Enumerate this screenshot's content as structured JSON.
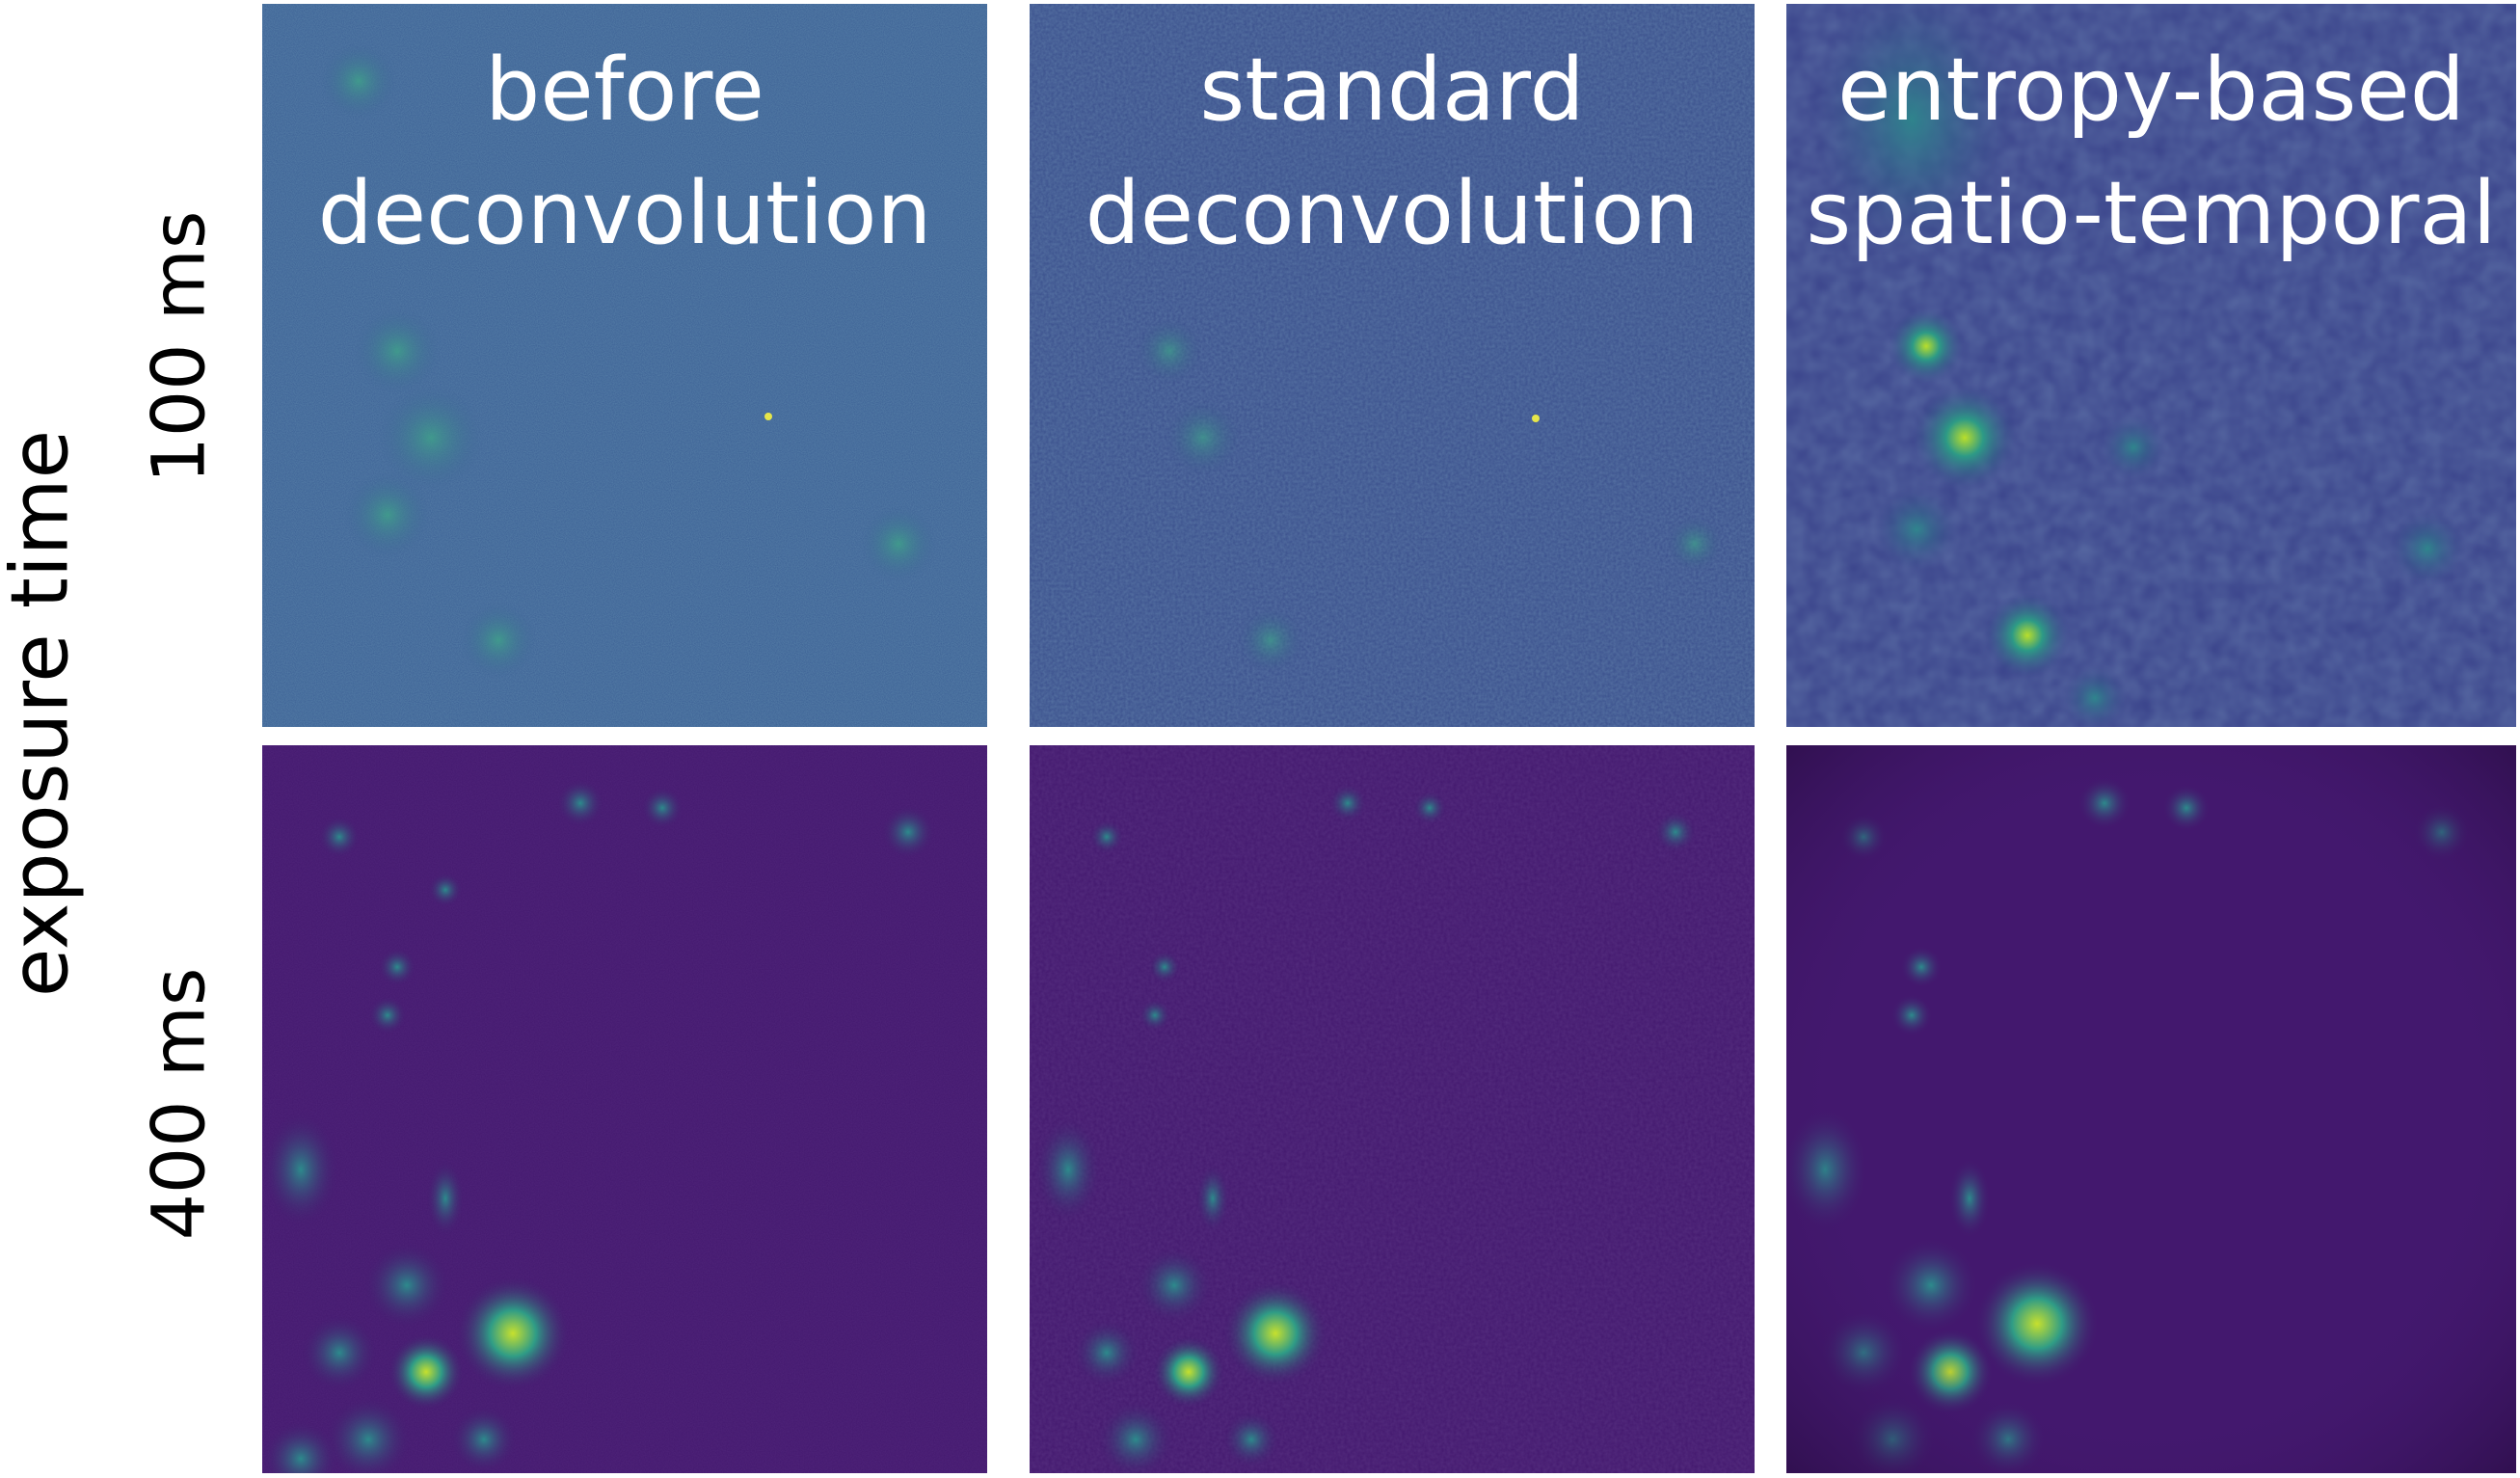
{
  "figure": {
    "y_axis_title": "exposure time",
    "rows": [
      {
        "label": "100 ms"
      },
      {
        "label": "400 ms"
      }
    ],
    "columns": [
      {
        "title_line1": "before",
        "title_line2": "deconvolution"
      },
      {
        "title_line1": "standard",
        "title_line2": "deconvolution"
      },
      {
        "title_line1": "entropy-based",
        "title_line2": "spatio-temporal"
      }
    ]
  },
  "colors": {
    "row1_col1_bg": "#3b5f94",
    "row1_col2_bg": "#3a4f8c",
    "row1_col3_bg": "#39428a",
    "row2_bg": "#43186e",
    "blob_mid": "#2d8a8c",
    "blob_high": "#b9de2b",
    "title_text": "#ffffff"
  }
}
